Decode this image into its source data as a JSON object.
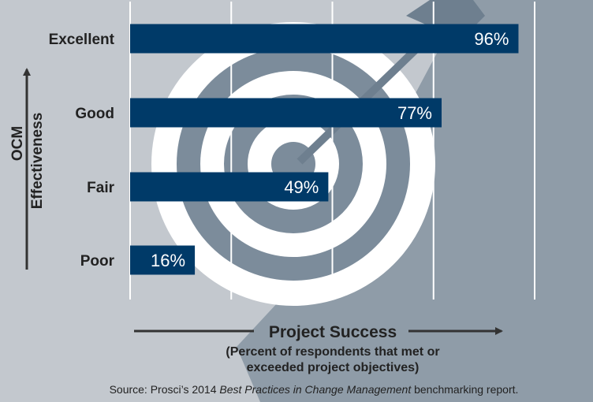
{
  "chart_data": {
    "type": "bar",
    "orientation": "horizontal",
    "categories": [
      "Excellent",
      "Good",
      "Fair",
      "Poor"
    ],
    "values": [
      96,
      77,
      49,
      16
    ],
    "value_labels": [
      "96%",
      "77%",
      "49%",
      "16%"
    ],
    "xlim": [
      0,
      100
    ],
    "grid": true,
    "ylabel_lines": [
      "OCM",
      "Effectiveness"
    ],
    "xlabel": "Project Success",
    "xlabel_sub_lines": [
      "(Percent of respondents that met or",
      "exceeded project objectives)"
    ],
    "source": {
      "prefix": "Source: Prosci’s 2014 ",
      "italic": "Best Practices in Change Management",
      "suffix": " benchmarking report."
    }
  },
  "colors": {
    "background": "#c3c8ce",
    "bar": "#003a68",
    "bar_text": "#ffffff",
    "grid": "#ffffff",
    "text": "#222222",
    "target_ring_light": "#ffffff",
    "target_ring_dark": "#7c8c9b",
    "shadow": "#8f9ca8"
  },
  "decoration": {
    "background_icon": "target-with-arrow-icon"
  }
}
